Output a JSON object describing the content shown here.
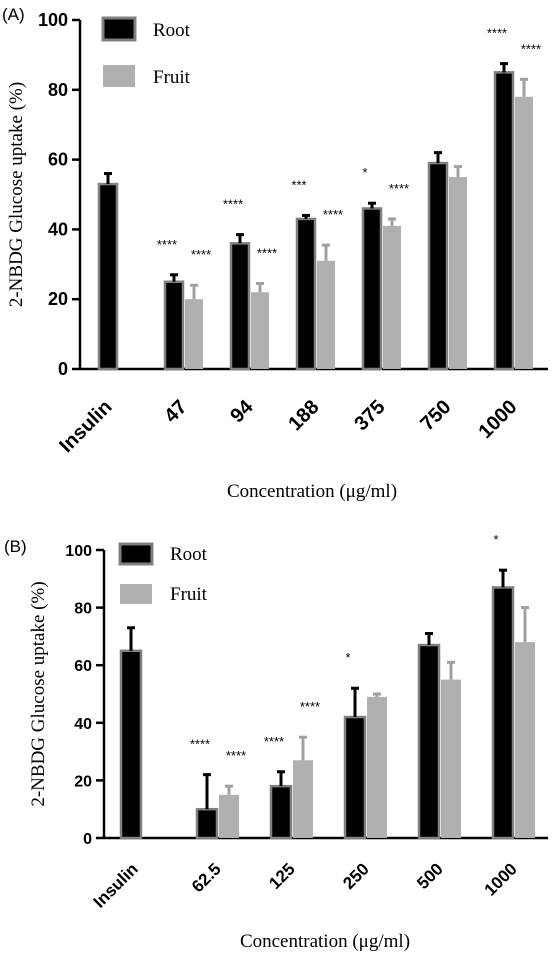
{
  "chart_data": [
    {
      "type": "bar",
      "panel_label": "(A)",
      "title": "",
      "xlabel": "Concentration (μg/ml)",
      "ylabel": "2-NBDG Glucose uptake (%)",
      "ylim": [
        0,
        100
      ],
      "yticks": [
        "0",
        "20",
        "40",
        "60",
        "80",
        "100"
      ],
      "categories": [
        "Insulin",
        "47",
        "94",
        "188",
        "375",
        "750",
        "1000"
      ],
      "legend_position": "top-left",
      "series": [
        {
          "name": "Root",
          "color": "#000000",
          "values": [
            53,
            25,
            36,
            43,
            46,
            59,
            85
          ],
          "errors": [
            3,
            2,
            2.5,
            1,
            1.5,
            3,
            2.5
          ],
          "significance": [
            "",
            "****",
            "****",
            "***",
            "*",
            "",
            "****"
          ]
        },
        {
          "name": "Fruit",
          "color": "#b0b0b0",
          "values": [
            null,
            20,
            22,
            31,
            41,
            55,
            78
          ],
          "errors": [
            null,
            4,
            2.5,
            4.5,
            2,
            3,
            5
          ],
          "significance": [
            "",
            "****",
            "****",
            "****",
            "****",
            "",
            "****"
          ]
        }
      ]
    },
    {
      "type": "bar",
      "panel_label": "(B)",
      "title": "",
      "xlabel": "Concentration (μg/ml)",
      "ylabel": "2-NBDG Glucose uptake (%)",
      "ylim": [
        0,
        100
      ],
      "yticks": [
        "0",
        "20",
        "40",
        "60",
        "80",
        "100"
      ],
      "categories": [
        "Insulin",
        "62.5",
        "125",
        "250",
        "500",
        "1000"
      ],
      "legend_position": "top-left",
      "series": [
        {
          "name": "Root",
          "color": "#000000",
          "values": [
            65,
            10,
            18,
            42,
            67,
            87
          ],
          "errors": [
            8,
            12,
            5,
            10,
            4,
            6
          ],
          "significance": [
            "",
            "****",
            "****",
            "*",
            "",
            "*"
          ]
        },
        {
          "name": "Fruit",
          "color": "#b0b0b0",
          "values": [
            null,
            15,
            27,
            49,
            55,
            68
          ],
          "errors": [
            null,
            3,
            8,
            1,
            6,
            12
          ],
          "significance": [
            "",
            "****",
            "****",
            "",
            "",
            ""
          ]
        }
      ]
    }
  ]
}
